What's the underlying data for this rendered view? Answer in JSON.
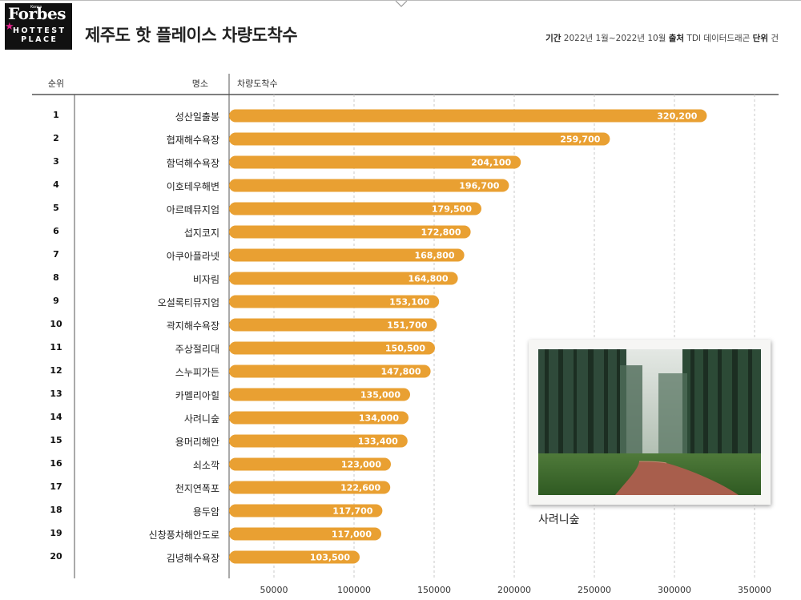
{
  "logo": {
    "brand": "Forbes",
    "edition": "Korea",
    "badge_line1": "HOTTEST",
    "badge_line2": "PLACE"
  },
  "header": {
    "title": "제주도 핫 플레이스 차량도착수",
    "period_label": "기간",
    "period_value": "2022년 1월~2022년 10월",
    "source_label": "출처",
    "source_value": "TDI 데이터드래곤",
    "unit_label": "단위",
    "unit_value": "건"
  },
  "columns": {
    "rank": "순위",
    "place": "명소",
    "value": "차량도착수"
  },
  "photo": {
    "caption": "사려니숲"
  },
  "colors": {
    "bar": "#e9a032",
    "bar_text": "#ffffff",
    "grid": "#c9c9c9",
    "axis": "#555555"
  },
  "chart_data": {
    "type": "bar",
    "orientation": "horizontal",
    "title": "제주도 핫 플레이스 차량도착수",
    "ylabel": "차량도착수",
    "categories": [
      "성산일출봉",
      "협재해수욕장",
      "함덕해수욕장",
      "이호테우해변",
      "아르떼뮤지엄",
      "섭지코지",
      "아쿠아플라넷",
      "비자림",
      "오설록티뮤지엄",
      "곽지해수욕장",
      "주상절리대",
      "스누피가든",
      "카멜리아힐",
      "사려니숲",
      "용머리해안",
      "쇠소깍",
      "천지연폭포",
      "용두암",
      "신창풍차해안도로",
      "김녕해수욕장"
    ],
    "ranks": [
      "1",
      "2",
      "3",
      "4",
      "5",
      "6",
      "7",
      "8",
      "9",
      "10",
      "11",
      "12",
      "13",
      "14",
      "15",
      "16",
      "17",
      "18",
      "19",
      "20"
    ],
    "values": [
      320200,
      259700,
      204100,
      196700,
      179500,
      172800,
      168800,
      164800,
      153100,
      151700,
      150500,
      147800,
      135000,
      134000,
      133400,
      123000,
      122600,
      117700,
      117000,
      103500
    ],
    "value_labels": [
      "320,200",
      "259,700",
      "204,100",
      "196,700",
      "179,500",
      "172,800",
      "168,800",
      "164,800",
      "153,100",
      "151,700",
      "150,500",
      "147,800",
      "135,000",
      "134,000",
      "133,400",
      "123,000",
      "122,600",
      "117,700",
      "117,000",
      "103,500"
    ],
    "xlim": [
      22000,
      365000
    ],
    "xticks": [
      50000,
      100000,
      150000,
      200000,
      250000,
      300000,
      350000
    ],
    "xtick_labels": [
      "50000",
      "100000",
      "150000",
      "200000",
      "250000",
      "300000",
      "350000"
    ],
    "grid": "vertical-dashed"
  }
}
